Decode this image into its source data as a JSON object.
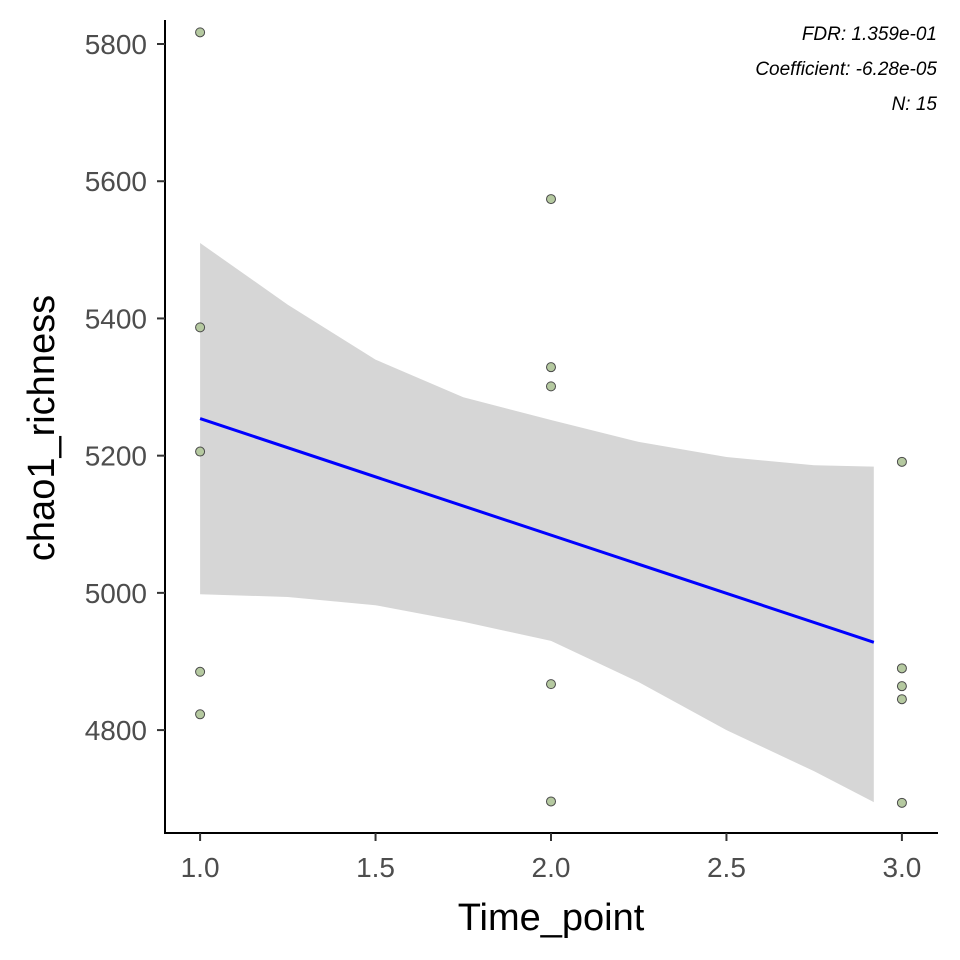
{
  "chart_data": {
    "type": "scatter",
    "xlabel": "Time_point",
    "ylabel": "chao1_richness",
    "xlim": [
      0.9,
      3.1
    ],
    "ylim": [
      4650,
      5835
    ],
    "x_ticks": [
      1.0,
      1.5,
      2.0,
      2.5,
      3.0
    ],
    "x_tick_labels": [
      "1.0",
      "1.5",
      "2.0",
      "2.5",
      "3.0"
    ],
    "y_ticks": [
      4800,
      5000,
      5200,
      5400,
      5600,
      5800
    ],
    "y_tick_labels": [
      "4800",
      "5000",
      "5200",
      "5400",
      "5600",
      "5800"
    ],
    "grid": false,
    "colors": {
      "points": "#b5c9a0",
      "fit_line": "#0000ff",
      "ribbon": "#d6d6d6"
    },
    "points": [
      {
        "x": 1,
        "y": 5817
      },
      {
        "x": 1,
        "y": 5387
      },
      {
        "x": 1,
        "y": 5206
      },
      {
        "x": 1,
        "y": 4885
      },
      {
        "x": 1,
        "y": 4823
      },
      {
        "x": 2,
        "y": 5574
      },
      {
        "x": 2,
        "y": 5329
      },
      {
        "x": 2,
        "y": 5301
      },
      {
        "x": 2,
        "y": 4867
      },
      {
        "x": 2,
        "y": 4696
      },
      {
        "x": 3,
        "y": 5191
      },
      {
        "x": 3,
        "y": 4890
      },
      {
        "x": 3,
        "y": 4864
      },
      {
        "x": 3,
        "y": 4845
      },
      {
        "x": 3,
        "y": 4694
      }
    ],
    "fit_line": {
      "x": [
        1.0,
        2.92
      ],
      "y": [
        5254,
        4928
      ]
    },
    "confidence_band": {
      "x": [
        1.0,
        1.25,
        1.5,
        1.75,
        2.0,
        2.25,
        2.5,
        2.75,
        2.92
      ],
      "upper": [
        5510,
        5420,
        5340,
        5285,
        5252,
        5220,
        5198,
        5186,
        5184
      ],
      "lower": [
        4998,
        4994,
        4982,
        4958,
        4930,
        4870,
        4800,
        4740,
        4695
      ]
    },
    "annotations": [
      "FDR: 1.359e-01",
      "Coefficient: -6.28e-05",
      "N: 15"
    ]
  }
}
